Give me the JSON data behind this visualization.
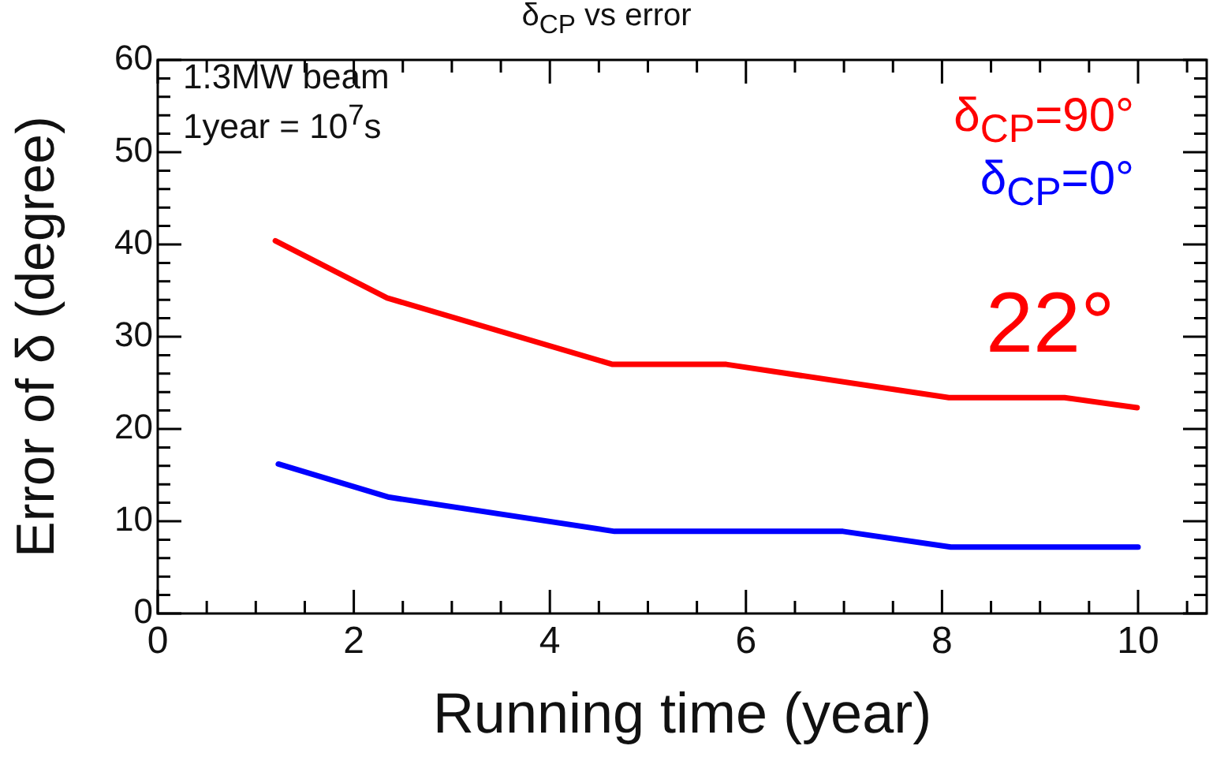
{
  "chart_data": {
    "type": "line",
    "title": "δ$_{CP}$ vs error",
    "xlabel": "Running time (year)",
    "ylabel": "Error of δ (degree)",
    "xlim": [
      0,
      10.7
    ],
    "ylim": [
      0,
      60
    ],
    "xticks": [
      0,
      {
        "value": 0.5,
        "label": null
      },
      2,
      {
        "value": 1,
        "label": null
      },
      {
        "value": 1.5,
        "label": null
      },
      {
        "value": 2.5,
        "label": null
      },
      {
        "value": 3,
        "label": null
      },
      {
        "value": 3.5,
        "label": null
      },
      4,
      {
        "value": 4.5,
        "label": null
      },
      {
        "value": 5,
        "label": null
      },
      {
        "value": 5.5,
        "label": null
      },
      6,
      {
        "value": 6.5,
        "label": null
      },
      {
        "value": 7,
        "label": null
      },
      {
        "value": 7.5,
        "label": null
      },
      8,
      {
        "value": 8.5,
        "label": null
      },
      {
        "value": 9,
        "label": null
      },
      {
        "value": 9.5,
        "label": null
      },
      10,
      {
        "value": 10.5,
        "label": null
      }
    ],
    "yticks": [
      0,
      {
        "value": 2,
        "label": null
      },
      {
        "value": 4,
        "label": null
      },
      {
        "value": 6,
        "label": null
      },
      {
        "value": 8,
        "label": null
      },
      10,
      {
        "value": 12,
        "label": null
      },
      {
        "value": 14,
        "label": null
      },
      {
        "value": 16,
        "label": null
      },
      {
        "value": 18,
        "label": null
      },
      20,
      {
        "value": 22,
        "label": null
      },
      {
        "value": 24,
        "label": null
      },
      {
        "value": 26,
        "label": null
      },
      {
        "value": 28,
        "label": null
      },
      30,
      {
        "value": 32,
        "label": null
      },
      {
        "value": 34,
        "label": null
      },
      {
        "value": 36,
        "label": null
      },
      {
        "value": 38,
        "label": null
      },
      40,
      {
        "value": 42,
        "label": null
      },
      {
        "value": 44,
        "label": null
      },
      {
        "value": 46,
        "label": null
      },
      {
        "value": 48,
        "label": null
      },
      50,
      {
        "value": 52,
        "label": null
      },
      {
        "value": 54,
        "label": null
      },
      {
        "value": 56,
        "label": null
      },
      {
        "value": 58,
        "label": null
      },
      60
    ],
    "grid": false,
    "legend": "top right",
    "marker": "none",
    "line_style": "solid",
    "annotations": [
      "1.3MW beam",
      "1year = 10$^{7}$s",
      "22°"
    ],
    "series": [
      {
        "name": "δ$_{CP}$=90°",
        "color": "#ff0000",
        "x": [
          1.2,
          2.34,
          4.64,
          5.8,
          8.07,
          9.25,
          9.99
        ],
        "values": [
          40.4,
          34.2,
          27.0,
          27.0,
          23.4,
          23.4,
          22.3
        ]
      },
      {
        "name": "δ$_{CP}$=0°",
        "color": "#0000ff",
        "x": [
          1.23,
          2.36,
          4.66,
          6.99,
          8.09,
          10.0
        ],
        "values": [
          16.2,
          12.6,
          8.9,
          8.9,
          7.2,
          7.2
        ]
      }
    ]
  }
}
